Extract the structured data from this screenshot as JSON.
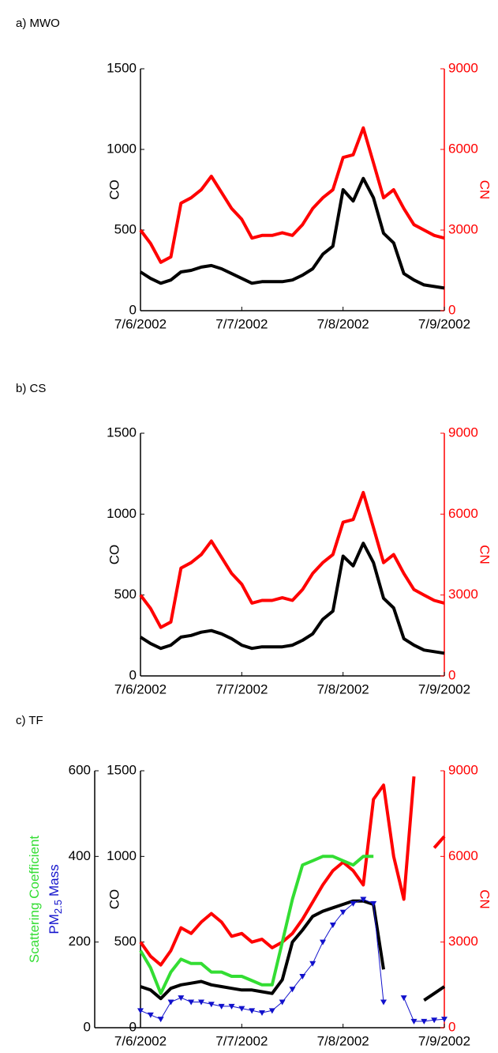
{
  "chart_data": [
    {
      "type": "line",
      "title": "a) MWO",
      "ylabel": "CO",
      "y2label": "CN",
      "x": [
        0,
        0.1,
        0.2,
        0.3,
        0.4,
        0.5,
        0.6,
        0.7,
        0.8,
        0.9,
        1,
        1.1,
        1.2,
        1.3,
        1.4,
        1.5,
        1.6,
        1.7,
        1.8,
        1.9,
        2,
        2.1,
        2.2,
        2.3,
        2.4,
        2.5,
        2.6,
        2.7,
        2.8,
        2.9,
        3
      ],
      "xlim": [
        0,
        3
      ],
      "xticks": [
        {
          "value": 0,
          "label": "7/6/2002"
        },
        {
          "value": 1,
          "label": "7/7/2002"
        },
        {
          "value": 2,
          "label": "7/8/2002"
        },
        {
          "value": 3,
          "label": "7/9/2002"
        }
      ],
      "ylim": [
        0,
        1500
      ],
      "yticks": [
        0,
        500,
        1000,
        1500
      ],
      "y2lim": [
        0,
        9000
      ],
      "y2ticks": [
        0,
        3000,
        6000,
        9000
      ],
      "series": [
        {
          "name": "CO",
          "color": "#000000",
          "values": [
            240,
            200,
            170,
            190,
            240,
            250,
            270,
            280,
            260,
            230,
            200,
            170,
            180,
            180,
            180,
            190,
            220,
            260,
            350,
            400,
            750,
            680,
            820,
            700,
            480,
            420,
            230,
            190,
            160,
            150,
            140
          ]
        },
        {
          "name": "CN",
          "color": "#ff0000",
          "axis": "y2",
          "values": [
            3000,
            2500,
            1800,
            2000,
            4000,
            4200,
            4500,
            5000,
            4400,
            3800,
            3400,
            2700,
            2800,
            2800,
            2900,
            2800,
            3200,
            3800,
            4200,
            4500,
            5700,
            5800,
            6800,
            5500,
            4200,
            4500,
            3800,
            3200,
            3000,
            2800,
            2700
          ]
        }
      ]
    },
    {
      "type": "line",
      "title": "b) CS",
      "ylabel": "CO",
      "y2label": "CN",
      "x": [
        0,
        0.1,
        0.2,
        0.3,
        0.4,
        0.5,
        0.6,
        0.7,
        0.8,
        0.9,
        1,
        1.1,
        1.2,
        1.3,
        1.4,
        1.5,
        1.6,
        1.7,
        1.8,
        1.9,
        2,
        2.1,
        2.2,
        2.3,
        2.4,
        2.5,
        2.6,
        2.7,
        2.8,
        2.9,
        3
      ],
      "xlim": [
        0,
        3
      ],
      "xticks": [
        {
          "value": 0,
          "label": "7/6/2002"
        },
        {
          "value": 1,
          "label": "7/7/2002"
        },
        {
          "value": 2,
          "label": "7/8/2002"
        },
        {
          "value": 3,
          "label": "7/9/2002"
        }
      ],
      "ylim": [
        0,
        1500
      ],
      "yticks": [
        0,
        500,
        1000,
        1500
      ],
      "y2lim": [
        0,
        9000
      ],
      "y2ticks": [
        0,
        3000,
        6000,
        9000
      ],
      "series": [
        {
          "name": "CO",
          "color": "#000000",
          "values": [
            240,
            200,
            170,
            190,
            240,
            250,
            270,
            280,
            260,
            230,
            190,
            170,
            180,
            180,
            180,
            190,
            220,
            260,
            350,
            400,
            740,
            680,
            820,
            700,
            480,
            420,
            230,
            190,
            160,
            150,
            140
          ]
        },
        {
          "name": "CN",
          "color": "#ff0000",
          "axis": "y2",
          "values": [
            3000,
            2500,
            1800,
            2000,
            4000,
            4200,
            4500,
            5000,
            4400,
            3800,
            3400,
            2700,
            2800,
            2800,
            2900,
            2800,
            3200,
            3800,
            4200,
            4500,
            5700,
            5800,
            6800,
            5500,
            4200,
            4500,
            3800,
            3200,
            3000,
            2800,
            2700
          ]
        }
      ]
    },
    {
      "type": "line",
      "title": "c) TF",
      "ylabel": "CO",
      "y2label": "CN",
      "y3label": [
        {
          "text": "Scattering Coefficient",
          "color": "#33dd33"
        },
        {
          "text": "PM",
          "color": "#1111cc"
        },
        {
          "text": "2.5",
          "color": "#1111cc",
          "sub": true
        },
        {
          "text": "Mass",
          "color": "#1111cc"
        }
      ],
      "x": [
        0,
        0.1,
        0.2,
        0.3,
        0.4,
        0.5,
        0.6,
        0.7,
        0.8,
        0.9,
        1,
        1.1,
        1.2,
        1.3,
        1.4,
        1.5,
        1.6,
        1.7,
        1.8,
        1.9,
        2,
        2.1,
        2.2,
        2.3,
        2.4,
        2.5,
        2.6,
        2.7,
        2.8,
        2.9,
        3
      ],
      "xlim": [
        0,
        3
      ],
      "xticks": [
        {
          "value": 0,
          "label": "7/6/2002"
        },
        {
          "value": 1,
          "label": "7/7/2002"
        },
        {
          "value": 2,
          "label": "7/8/2002"
        },
        {
          "value": 3,
          "label": "7/9/2002"
        }
      ],
      "ylim": [
        0,
        1500
      ],
      "yticks": [
        0,
        500,
        1000,
        1500
      ],
      "y2lim": [
        0,
        9000
      ],
      "y2ticks": [
        0,
        3000,
        6000,
        9000
      ],
      "y3lim": [
        0,
        600
      ],
      "y3ticks": [
        0,
        200,
        400,
        600
      ],
      "series": [
        {
          "name": "CO",
          "color": "#000000",
          "values": [
            240,
            220,
            170,
            230,
            250,
            260,
            270,
            250,
            240,
            230,
            220,
            220,
            210,
            200,
            280,
            500,
            570,
            650,
            680,
            700,
            720,
            740,
            740,
            720,
            340,
            null,
            null,
            null,
            160,
            200,
            240
          ]
        },
        {
          "name": "CN",
          "color": "#ff0000",
          "axis": "y2",
          "values": [
            3000,
            2500,
            2200,
            2700,
            3500,
            3300,
            3700,
            4000,
            3700,
            3200,
            3300,
            3000,
            3100,
            2800,
            3000,
            3300,
            3800,
            4400,
            5000,
            5500,
            5800,
            5500,
            5000,
            8000,
            8500,
            6000,
            4500,
            8800,
            null,
            6300,
            6700
          ]
        },
        {
          "name": "Scattering Coefficient",
          "color": "#33dd33",
          "axis": "y3",
          "values": [
            180,
            140,
            80,
            130,
            160,
            150,
            150,
            130,
            130,
            120,
            120,
            110,
            100,
            100,
            200,
            300,
            380,
            390,
            400,
            400,
            390,
            380,
            400,
            400,
            null,
            null,
            null,
            null,
            null,
            null,
            null
          ]
        },
        {
          "name": "PM2.5 Mass",
          "color": "#1111cc",
          "axis": "y3",
          "marker": "triangle",
          "values": [
            40,
            30,
            20,
            60,
            70,
            60,
            60,
            55,
            50,
            50,
            45,
            40,
            35,
            40,
            60,
            90,
            120,
            150,
            200,
            240,
            270,
            290,
            300,
            290,
            60,
            null,
            70,
            15,
            15,
            18,
            20
          ]
        }
      ]
    }
  ]
}
